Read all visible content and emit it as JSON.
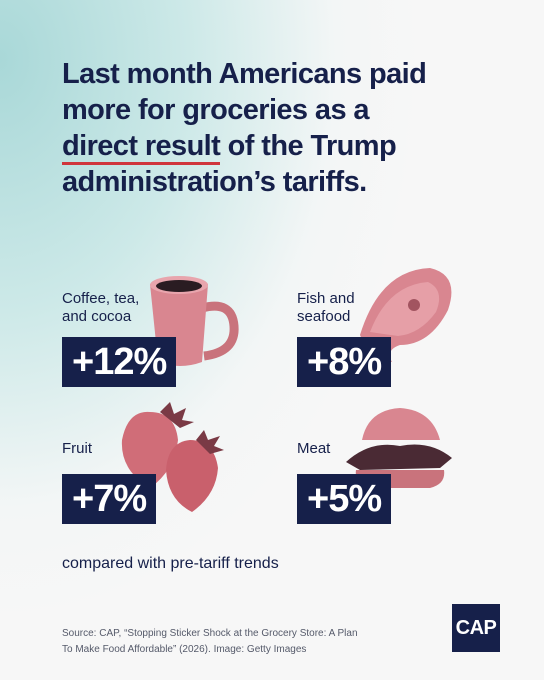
{
  "header": {
    "title_lines": [
      "Last month Americans paid",
      "more for groceries as a"
    ],
    "title_highlight": "direct result",
    "title_line3_rest": "of the Trump",
    "title_line4": "administration’s tariffs."
  },
  "items": [
    {
      "label": "Coffee, tea,\nand cocoa",
      "value": "+12%"
    },
    {
      "label": "Fish and\nseafood",
      "value": "+8%"
    },
    {
      "label": "Fruit",
      "value": "+7%"
    },
    {
      "label": "Meat",
      "value": "+5%"
    }
  ],
  "note": "compared with pre-tariff trends",
  "footer": {
    "source": "Source: CAP, “Stopping Sticker Shock at the Grocery Store: A Plan To Make Food Affordable” (2026). Image: Getty Images",
    "logo": "CAP"
  }
}
